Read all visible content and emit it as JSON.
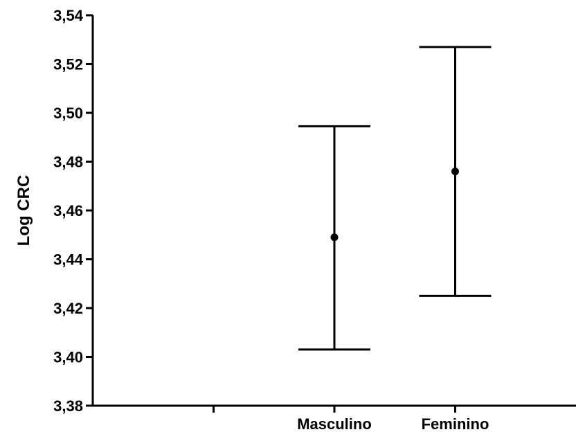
{
  "chart_data": {
    "type": "scatter",
    "title": "",
    "xlabel": "",
    "ylabel": "Log CRC",
    "ylim": [
      3.38,
      3.54
    ],
    "ytick_labels": [
      "3,38",
      "3,40",
      "3,42",
      "3,44",
      "3,46",
      "3,48",
      "3,50",
      "3,52",
      "3,54"
    ],
    "yticks": [
      3.38,
      3.4,
      3.42,
      3.44,
      3.46,
      3.48,
      3.5,
      3.52,
      3.54
    ],
    "categories": [
      "Masculino",
      "Feminino"
    ],
    "x_slots": 4,
    "category_slots": [
      2,
      3
    ],
    "points": [
      {
        "category": "Masculino",
        "mean": 3.449,
        "upper": 3.4945,
        "lower": 3.403
      },
      {
        "category": "Feminino",
        "mean": 3.476,
        "upper": 3.527,
        "lower": 3.425
      }
    ],
    "grid": false,
    "color": "#000000"
  }
}
